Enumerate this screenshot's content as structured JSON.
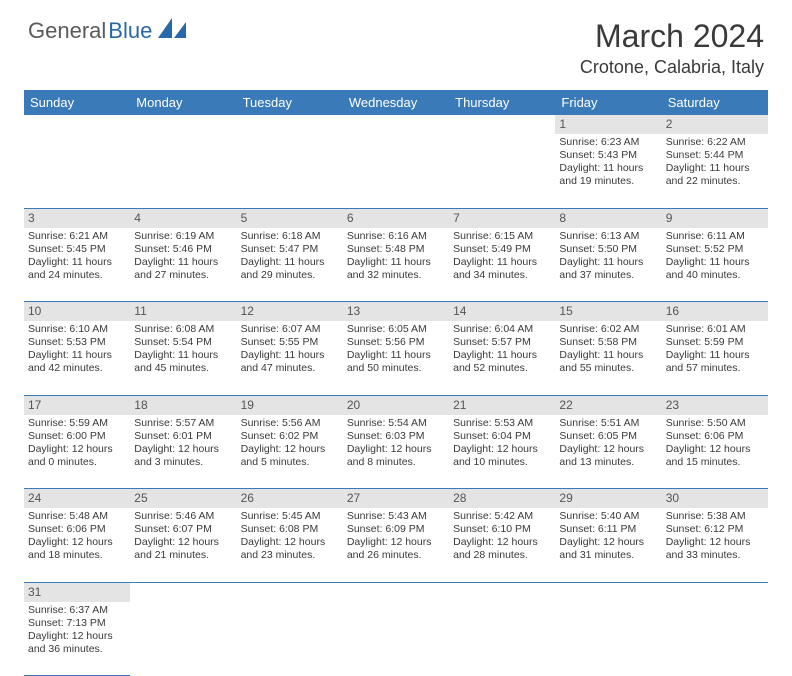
{
  "brand": {
    "part1": "General",
    "part2": "Blue"
  },
  "title": "March 2024",
  "location": "Crotone, Calabria, Italy",
  "colors": {
    "header_bg": "#3a7ab8",
    "header_text": "#ffffff",
    "daynum_bg": "#e4e4e4",
    "border": "#3a7ab8",
    "text": "#3a3a3a",
    "logo_gray": "#5a5a5a",
    "logo_blue": "#2968a8"
  },
  "day_headers": [
    "Sunday",
    "Monday",
    "Tuesday",
    "Wednesday",
    "Thursday",
    "Friday",
    "Saturday"
  ],
  "weeks": [
    [
      null,
      null,
      null,
      null,
      null,
      {
        "n": "1",
        "sr": "6:23 AM",
        "ss": "5:43 PM",
        "dl": "11 hours and 19 minutes."
      },
      {
        "n": "2",
        "sr": "6:22 AM",
        "ss": "5:44 PM",
        "dl": "11 hours and 22 minutes."
      }
    ],
    [
      {
        "n": "3",
        "sr": "6:21 AM",
        "ss": "5:45 PM",
        "dl": "11 hours and 24 minutes."
      },
      {
        "n": "4",
        "sr": "6:19 AM",
        "ss": "5:46 PM",
        "dl": "11 hours and 27 minutes."
      },
      {
        "n": "5",
        "sr": "6:18 AM",
        "ss": "5:47 PM",
        "dl": "11 hours and 29 minutes."
      },
      {
        "n": "6",
        "sr": "6:16 AM",
        "ss": "5:48 PM",
        "dl": "11 hours and 32 minutes."
      },
      {
        "n": "7",
        "sr": "6:15 AM",
        "ss": "5:49 PM",
        "dl": "11 hours and 34 minutes."
      },
      {
        "n": "8",
        "sr": "6:13 AM",
        "ss": "5:50 PM",
        "dl": "11 hours and 37 minutes."
      },
      {
        "n": "9",
        "sr": "6:11 AM",
        "ss": "5:52 PM",
        "dl": "11 hours and 40 minutes."
      }
    ],
    [
      {
        "n": "10",
        "sr": "6:10 AM",
        "ss": "5:53 PM",
        "dl": "11 hours and 42 minutes."
      },
      {
        "n": "11",
        "sr": "6:08 AM",
        "ss": "5:54 PM",
        "dl": "11 hours and 45 minutes."
      },
      {
        "n": "12",
        "sr": "6:07 AM",
        "ss": "5:55 PM",
        "dl": "11 hours and 47 minutes."
      },
      {
        "n": "13",
        "sr": "6:05 AM",
        "ss": "5:56 PM",
        "dl": "11 hours and 50 minutes."
      },
      {
        "n": "14",
        "sr": "6:04 AM",
        "ss": "5:57 PM",
        "dl": "11 hours and 52 minutes."
      },
      {
        "n": "15",
        "sr": "6:02 AM",
        "ss": "5:58 PM",
        "dl": "11 hours and 55 minutes."
      },
      {
        "n": "16",
        "sr": "6:01 AM",
        "ss": "5:59 PM",
        "dl": "11 hours and 57 minutes."
      }
    ],
    [
      {
        "n": "17",
        "sr": "5:59 AM",
        "ss": "6:00 PM",
        "dl": "12 hours and 0 minutes."
      },
      {
        "n": "18",
        "sr": "5:57 AM",
        "ss": "6:01 PM",
        "dl": "12 hours and 3 minutes."
      },
      {
        "n": "19",
        "sr": "5:56 AM",
        "ss": "6:02 PM",
        "dl": "12 hours and 5 minutes."
      },
      {
        "n": "20",
        "sr": "5:54 AM",
        "ss": "6:03 PM",
        "dl": "12 hours and 8 minutes."
      },
      {
        "n": "21",
        "sr": "5:53 AM",
        "ss": "6:04 PM",
        "dl": "12 hours and 10 minutes."
      },
      {
        "n": "22",
        "sr": "5:51 AM",
        "ss": "6:05 PM",
        "dl": "12 hours and 13 minutes."
      },
      {
        "n": "23",
        "sr": "5:50 AM",
        "ss": "6:06 PM",
        "dl": "12 hours and 15 minutes."
      }
    ],
    [
      {
        "n": "24",
        "sr": "5:48 AM",
        "ss": "6:06 PM",
        "dl": "12 hours and 18 minutes."
      },
      {
        "n": "25",
        "sr": "5:46 AM",
        "ss": "6:07 PM",
        "dl": "12 hours and 21 minutes."
      },
      {
        "n": "26",
        "sr": "5:45 AM",
        "ss": "6:08 PM",
        "dl": "12 hours and 23 minutes."
      },
      {
        "n": "27",
        "sr": "5:43 AM",
        "ss": "6:09 PM",
        "dl": "12 hours and 26 minutes."
      },
      {
        "n": "28",
        "sr": "5:42 AM",
        "ss": "6:10 PM",
        "dl": "12 hours and 28 minutes."
      },
      {
        "n": "29",
        "sr": "5:40 AM",
        "ss": "6:11 PM",
        "dl": "12 hours and 31 minutes."
      },
      {
        "n": "30",
        "sr": "5:38 AM",
        "ss": "6:12 PM",
        "dl": "12 hours and 33 minutes."
      }
    ],
    [
      {
        "n": "31",
        "sr": "6:37 AM",
        "ss": "7:13 PM",
        "dl": "12 hours and 36 minutes."
      },
      null,
      null,
      null,
      null,
      null,
      null
    ]
  ],
  "labels": {
    "sunrise": "Sunrise:",
    "sunset": "Sunset:",
    "daylight": "Daylight:"
  }
}
